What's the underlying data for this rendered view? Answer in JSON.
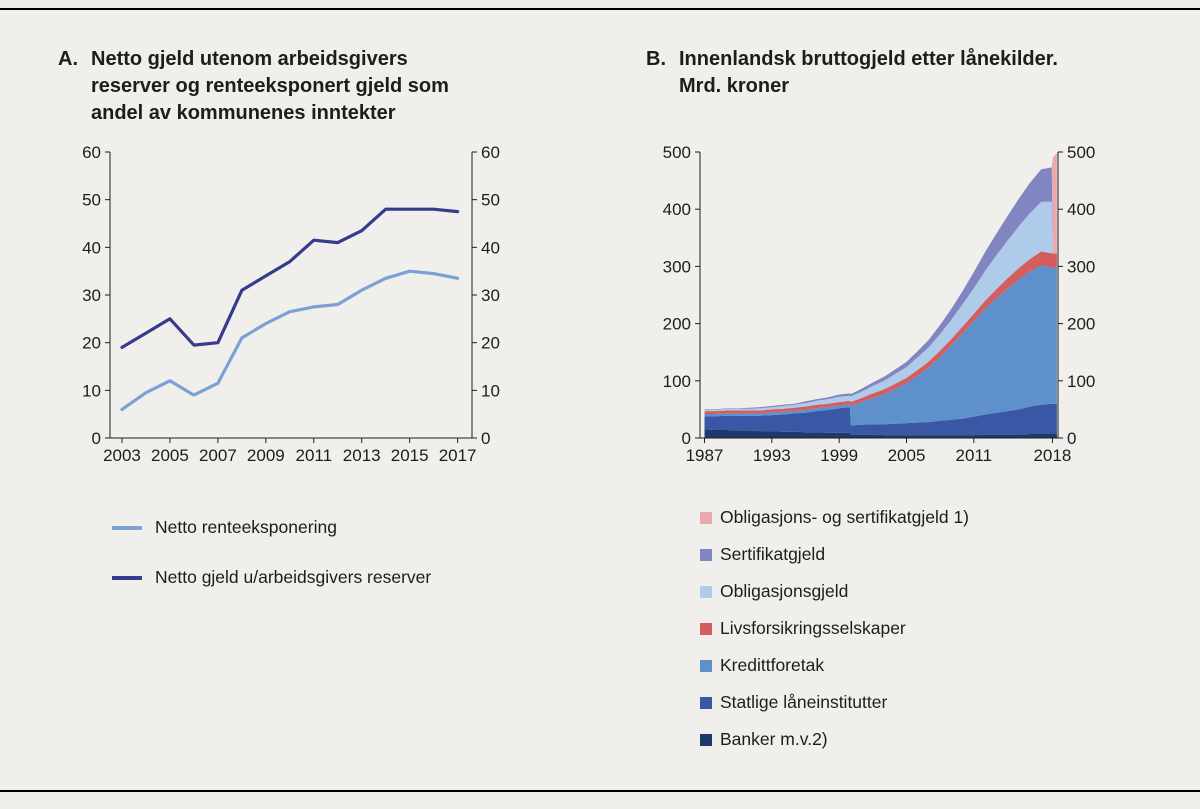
{
  "figure": {
    "background_color": "#f0efec",
    "rule_color": "#000000"
  },
  "panel_a": {
    "letter": "A.",
    "title": "Netto gjeld utenom arbeidsgivers reserver og renteeksponert gjeld som andel av kommunenes inntekter"
  },
  "panel_b": {
    "letter": "B.",
    "title": "Innenlandsk bruttogjeld etter lånekilder. Mrd. kroner"
  },
  "chart_data": [
    {
      "id": "chart-a",
      "type": "line",
      "title": "Netto gjeld utenom arbeidsgivers reserver og renteeksponert gjeld som andel av kommunenes inntekter",
      "grid": false,
      "legend_position": "below-left",
      "x": [
        2003,
        2004,
        2005,
        2006,
        2007,
        2008,
        2009,
        2010,
        2011,
        2012,
        2013,
        2014,
        2015,
        2016,
        2017
      ],
      "x_ticks": [
        2003,
        2005,
        2007,
        2009,
        2011,
        2013,
        2015,
        2017
      ],
      "xlim": [
        2002.5,
        2017.6
      ],
      "ylim": [
        0,
        60
      ],
      "y_ticks": [
        0,
        10,
        20,
        30,
        40,
        50,
        60
      ],
      "y_axis_sides": "both",
      "series": [
        {
          "id": "netto-renteeksponering",
          "name": "Netto renteeksponering",
          "color": "#7ba1d6",
          "values": [
            6,
            9.5,
            12,
            9,
            11.5,
            21,
            24,
            26.5,
            27.5,
            28,
            31,
            33.5,
            35,
            34.5,
            33.5
          ]
        },
        {
          "id": "netto-gjeld",
          "name": "Netto gjeld u/arbeidsgivers reserver",
          "color": "#363b8d",
          "values": [
            19,
            22,
            25,
            19.5,
            20,
            31,
            34,
            37,
            41.5,
            41,
            43.5,
            48,
            48,
            48,
            47.5
          ]
        }
      ]
    },
    {
      "id": "chart-b",
      "type": "area",
      "title": "Innenlandsk bruttogjeld etter lånekilder. Mrd. kroner",
      "grid": false,
      "legend_position": "below-left",
      "x": [
        1987,
        1988,
        1989,
        1990,
        1991,
        1992,
        1993,
        1994,
        1995,
        1996,
        1997,
        1998,
        1999,
        1999.95,
        2000.05,
        2001,
        2002,
        2003,
        2004,
        2005,
        2006,
        2007,
        2008,
        2009,
        2010,
        2011,
        2012,
        2013,
        2014,
        2015,
        2016,
        2017,
        2017.95,
        2018.05,
        2018.4
      ],
      "x_ticks": [
        1987,
        1993,
        1999,
        2005,
        2011,
        2018
      ],
      "xlim": [
        1986.6,
        2018.5
      ],
      "ylim": [
        0,
        500
      ],
      "y_ticks": [
        0,
        100,
        200,
        300,
        400,
        500
      ],
      "y_axis_sides": "both",
      "stack_order_bottom_up": [
        "banker",
        "statlige-laneinstitutter",
        "kredittforetak",
        "livsforsikringsselskaper",
        "obligasjonsgjeld",
        "sertifikatgjeld",
        "obligasjons-og-sertifikatgjeld"
      ],
      "series": [
        {
          "id": "obligasjons-og-sertifikatgjeld",
          "name": "Obligasjons- og sertifikatgjeld 1)",
          "color": "#eba9ad",
          "values": [
            0,
            0,
            0,
            0,
            0,
            0,
            0,
            0,
            0,
            0,
            0,
            0,
            0,
            0,
            0,
            0,
            0,
            0,
            0,
            0,
            0,
            0,
            0,
            0,
            0,
            0,
            0,
            0,
            0,
            0,
            0,
            0,
            0,
            168,
            175
          ]
        },
        {
          "id": "sertifikatgjeld",
          "name": "Sertifikatgjeld",
          "color": "#8185c1",
          "values": [
            1,
            1,
            1,
            1,
            2,
            2,
            2,
            2,
            2,
            3,
            3,
            3,
            4,
            4,
            4,
            5,
            6,
            7,
            8,
            9,
            11,
            13,
            16,
            19,
            23,
            28,
            33,
            38,
            43,
            48,
            53,
            57,
            60,
            0,
            0
          ]
        },
        {
          "id": "obligasjonsgjeld",
          "name": "Obligasjonsgjeld",
          "color": "#aecbea",
          "values": [
            2,
            2,
            3,
            3,
            3,
            4,
            4,
            5,
            5,
            6,
            7,
            8,
            9,
            9,
            10,
            11,
            13,
            15,
            17,
            19,
            22,
            25,
            29,
            34,
            39,
            45,
            52,
            59,
            66,
            73,
            80,
            87,
            90,
            0,
            0
          ]
        },
        {
          "id": "livsforsikringsselskaper",
          "name": "Livsforsikringsselskaper",
          "color": "#d65d5d",
          "values": [
            5,
            5,
            5,
            5,
            5,
            5,
            5,
            5,
            5,
            6,
            6,
            6,
            6,
            6,
            7,
            7,
            8,
            8,
            9,
            9,
            10,
            10,
            11,
            11,
            12,
            12,
            14,
            16,
            18,
            20,
            22,
            24,
            25,
            25,
            25
          ]
        },
        {
          "id": "kredittforetak",
          "name": "Kredittforetak",
          "color": "#5e90cb",
          "values": [
            4,
            4,
            4,
            4,
            4,
            4,
            5,
            5,
            5,
            5,
            5,
            5,
            5,
            5,
            34,
            40,
            46,
            53,
            61,
            70,
            82,
            96,
            112,
            130,
            149,
            168,
            185,
            200,
            214,
            227,
            236,
            244,
            238,
            238,
            238
          ]
        },
        {
          "id": "statlige-laneinstitutter",
          "name": "Statlige låneinstitutter",
          "color": "#3a57a5",
          "values": [
            23,
            24,
            25,
            26,
            26,
            27,
            28,
            30,
            32,
            34,
            37,
            40,
            43,
            45,
            16,
            17,
            18,
            19,
            20,
            21,
            22,
            23,
            25,
            27,
            29,
            32,
            35,
            38,
            41,
            44,
            48,
            51,
            53,
            53,
            53
          ]
        },
        {
          "id": "banker",
          "name": "Banker m.v.2)",
          "color": "#1d3a6b",
          "values": [
            15,
            14,
            14,
            13,
            13,
            12,
            12,
            11,
            11,
            10,
            10,
            9,
            9,
            9,
            6,
            6,
            6,
            5,
            5,
            5,
            5,
            5,
            5,
            5,
            5,
            5,
            6,
            6,
            6,
            6,
            7,
            7,
            7,
            7,
            7
          ]
        }
      ]
    }
  ]
}
